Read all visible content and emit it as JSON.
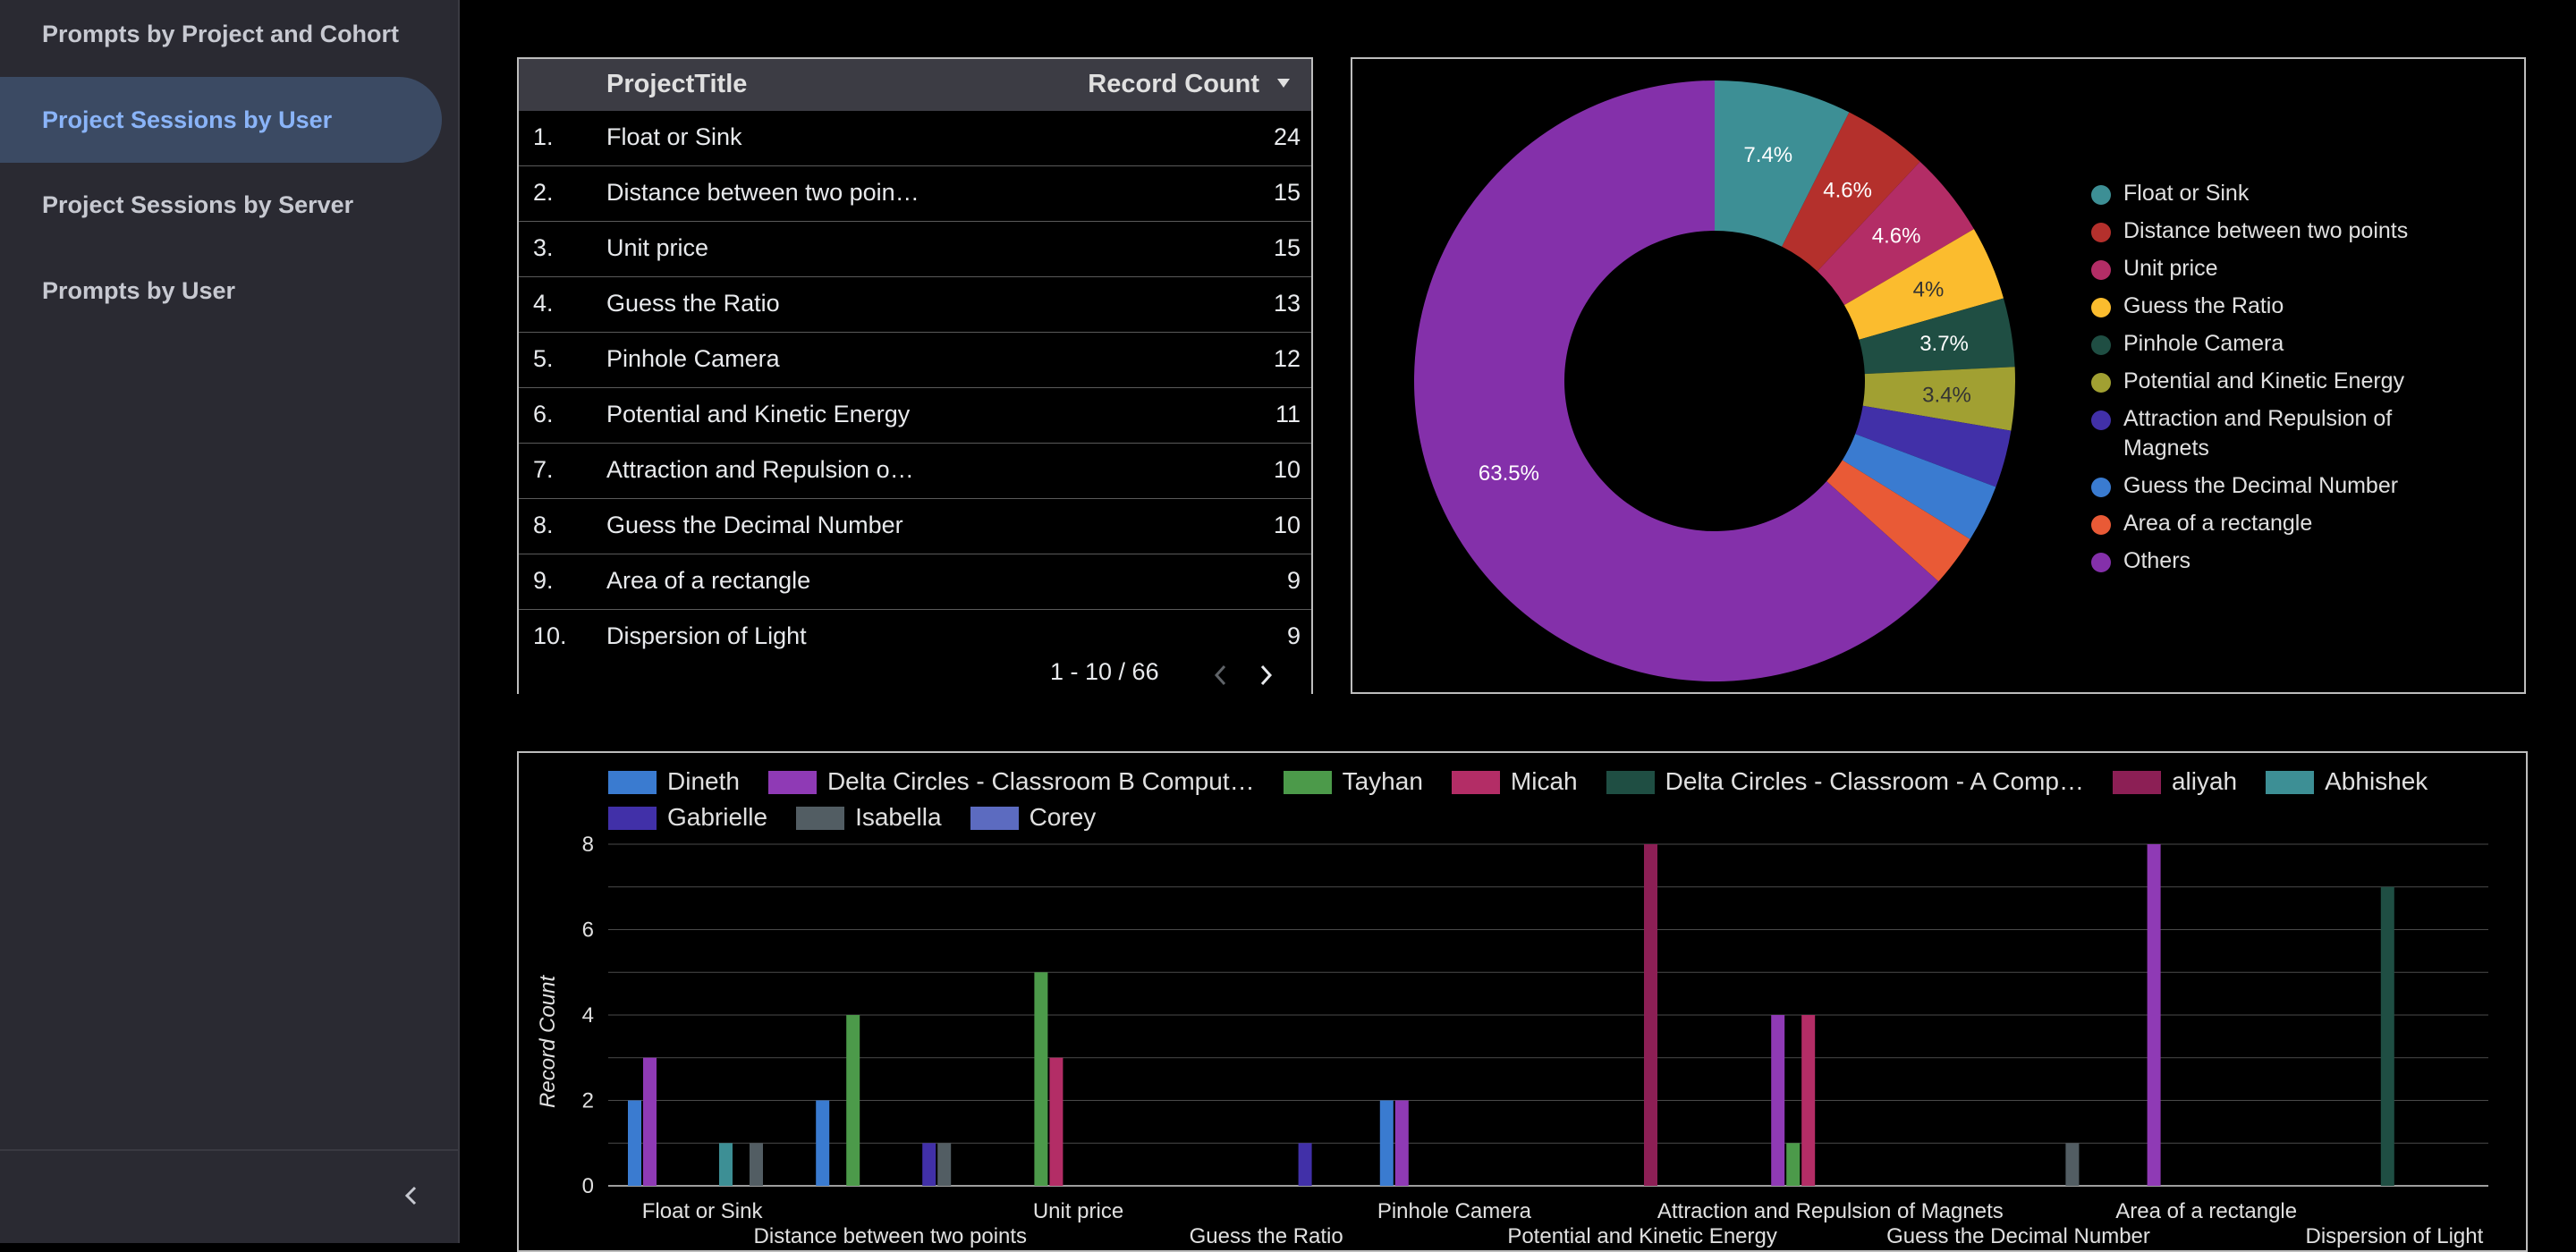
{
  "sidebar": {
    "items": [
      {
        "label": "Prompts by Project and Cohort",
        "active": false
      },
      {
        "label": "Project Sessions by User",
        "active": true
      },
      {
        "label": "Project Sessions by Server",
        "active": false
      },
      {
        "label": "Prompts by User",
        "active": false
      }
    ],
    "collapse_icon": "chevron-left-icon"
  },
  "table": {
    "headers": {
      "title": "ProjectTitle",
      "count": "Record Count"
    },
    "sort_icon": "sort-descending-icon",
    "rows": [
      {
        "idx": "1.",
        "title": "Float or Sink",
        "count": "24"
      },
      {
        "idx": "2.",
        "title": "Distance between two poin…",
        "count": "15"
      },
      {
        "idx": "3.",
        "title": "Unit price",
        "count": "15"
      },
      {
        "idx": "4.",
        "title": "Guess the Ratio",
        "count": "13"
      },
      {
        "idx": "5.",
        "title": "Pinhole Camera",
        "count": "12"
      },
      {
        "idx": "6.",
        "title": "Potential and Kinetic Energy",
        "count": "11"
      },
      {
        "idx": "7.",
        "title": "Attraction and Repulsion o…",
        "count": "10"
      },
      {
        "idx": "8.",
        "title": "Guess the Decimal Number",
        "count": "10"
      },
      {
        "idx": "9.",
        "title": "Area of a rectangle",
        "count": "9"
      },
      {
        "idx": "10.",
        "title": "Dispersion of Light",
        "count": "9"
      }
    ],
    "pagination": "1 - 10 / 66"
  },
  "chart_data": [
    {
      "type": "pie",
      "donut": true,
      "labels": [
        "Float or Sink",
        "Distance between two points",
        "Unit price",
        "Guess the Ratio",
        "Pinhole Camera",
        "Potential and Kinetic Energy",
        "Attraction and Repulsion of Magnets",
        "Guess the Decimal Number",
        "Area of a rectangle",
        "Others"
      ],
      "values": [
        7.4,
        4.6,
        4.6,
        4.0,
        3.7,
        3.4,
        3.1,
        3.1,
        2.8,
        63.5
      ],
      "display_labels": [
        "7.4%",
        "4.6%",
        "4.6%",
        "4%",
        "3.7%",
        "3.4%",
        "",
        "",
        "",
        "63.5%"
      ],
      "colors": [
        "#3d8f95",
        "#b4302c",
        "#b32d66",
        "#fbbc2e",
        "#1f4e43",
        "#a1a032",
        "#4130a8",
        "#3a7bd0",
        "#e95a36",
        "#8430aa"
      ],
      "legend_position": "right"
    },
    {
      "type": "bar",
      "categories": [
        "Float or Sink",
        "Distance between two points",
        "Unit price",
        "Guess the Ratio",
        "Pinhole Camera",
        "Potential and Kinetic Energy",
        "Attraction and Repulsion of Magnets",
        "Guess the Decimal Number",
        "Area of a rectangle",
        "Dispersion of Light"
      ],
      "series": [
        {
          "name": "Dineth",
          "color": "#3a7bd0",
          "values": [
            2,
            2,
            0,
            0,
            2,
            0,
            0,
            0,
            0,
            0
          ]
        },
        {
          "name": "Delta Circles - Classroom B Comput…",
          "color": "#8f3ab5",
          "values": [
            3,
            0,
            0,
            0,
            2,
            0,
            4,
            0,
            8,
            0
          ]
        },
        {
          "name": "Tayhan",
          "color": "#4c9a4a",
          "values": [
            0,
            4,
            5,
            0,
            0,
            0,
            1,
            0,
            0,
            0
          ]
        },
        {
          "name": "Micah",
          "color": "#b32d66",
          "values": [
            0,
            0,
            3,
            0,
            0,
            0,
            4,
            0,
            0,
            0
          ]
        },
        {
          "name": "Delta Circles - Classroom - A Comp…",
          "color": "#1f4e43",
          "values": [
            0,
            0,
            0,
            0,
            0,
            0,
            0,
            0,
            0,
            7
          ]
        },
        {
          "name": "aliyah",
          "color": "#8c1f55",
          "values": [
            0,
            0,
            0,
            0,
            0,
            8,
            0,
            0,
            0,
            0
          ]
        },
        {
          "name": "Abhishek",
          "color": "#3d8f95",
          "values": [
            1,
            0,
            0,
            0,
            0,
            0,
            0,
            0,
            0,
            0
          ]
        },
        {
          "name": "Gabrielle",
          "color": "#4130a8",
          "values": [
            0,
            1,
            0,
            1,
            0,
            0,
            0,
            0,
            0,
            0
          ]
        },
        {
          "name": "Isabella",
          "color": "#525d63",
          "values": [
            1,
            1,
            0,
            0,
            0,
            0,
            0,
            1,
            0,
            0
          ]
        },
        {
          "name": "Corey",
          "color": "#5c6bc0",
          "values": [
            0,
            0,
            0,
            0,
            0,
            0,
            0,
            0,
            0,
            0
          ]
        }
      ],
      "xlabel": "",
      "ylabel": "Record Count",
      "ylim": [
        0,
        8
      ],
      "yticks": [
        "0",
        "2",
        "4",
        "6",
        "8"
      ],
      "grid": true,
      "legend_position": "top"
    }
  ]
}
